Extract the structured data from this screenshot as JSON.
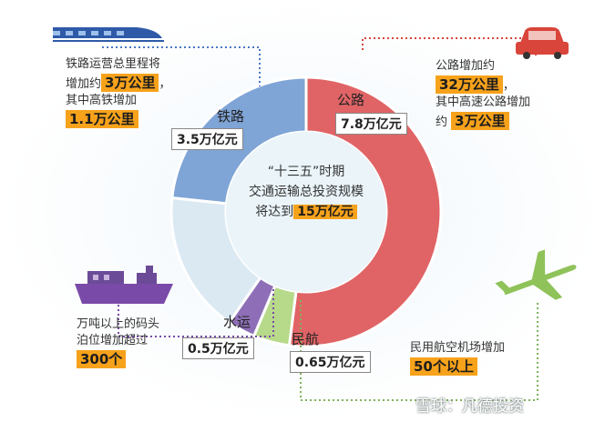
{
  "chart_data": {
    "type": "pie",
    "title": "",
    "unit": "万亿元",
    "slices": [
      {
        "name": "公路",
        "value": 7.8,
        "label": "7.8万亿元",
        "color": "#e06466"
      },
      {
        "name": "民航",
        "value": 0.65,
        "label": "0.65万亿元",
        "color": "#b7d98a"
      },
      {
        "name": "水运",
        "value": 0.5,
        "label": "0.5万亿元",
        "color": "#8e6fb7"
      },
      {
        "name": "",
        "value": 2.55,
        "label": "",
        "color": "#dbe9f3"
      },
      {
        "name": "铁路",
        "value": 3.5,
        "label": "3.5万亿元",
        "color": "#7fa4d6"
      }
    ],
    "total": 15
  },
  "center": {
    "line1": "“十三五”时期",
    "line2": "交通运输总投资规模",
    "line3_prefix": "将达到",
    "line3_value": "15万亿元"
  },
  "annotations": {
    "rail": {
      "l1": "铁路运营总里程将",
      "l2_prefix": "增加约",
      "l2_value": "3万公里",
      "l2_suffix": "，",
      "l3": "其中高铁增加",
      "l4_value": "1.1万公里"
    },
    "road": {
      "l1": "公路增加约",
      "l2_value": "32万公里",
      "l2_suffix": "，",
      "l3": "其中高速公路增加",
      "l4_prefix": "约",
      "l4_value": "3万公里"
    },
    "water": {
      "l1": "万吨以上的码头",
      "l2": "泊位增加超过",
      "l3_value": "300个"
    },
    "air": {
      "l1": "民用航空机场增加",
      "l2_value": "50个以上"
    }
  },
  "watermark": "雪球：凡德投资",
  "colors": {
    "accent": "#f7a21b",
    "road": "#e06466",
    "rail": "#7fa4d6",
    "water": "#8e6fb7",
    "air": "#b7d98a",
    "other": "#dbe9f3"
  },
  "icons": [
    "train-icon",
    "car-icon",
    "ship-icon",
    "plane-icon"
  ]
}
